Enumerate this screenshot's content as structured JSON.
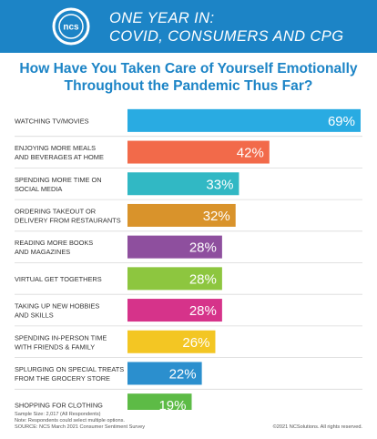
{
  "header": {
    "logo_text": "ncs",
    "line1": "ONE YEAR IN:",
    "line2": "COVID, CONSUMERS AND CPG",
    "background_color": "#1c84c6"
  },
  "chart_data": {
    "type": "bar",
    "orientation": "horizontal",
    "title_lines": [
      "How Have You Taken Care of Yourself Emotionally",
      "Throughout the Pandemic Thus Far?"
    ],
    "categories": [
      [
        "WATCHING TV/MOVIES"
      ],
      [
        "ENJOYING MORE MEALS",
        "AND BEVERAGES AT HOME"
      ],
      [
        "SPENDING MORE TIME ON",
        "SOCIAL MEDIA"
      ],
      [
        "ORDERING TAKEOUT OR",
        "DELIVERY FROM RESTAURANTS"
      ],
      [
        "READING MORE BOOKS",
        "AND MAGAZINES"
      ],
      [
        "VIRTUAL GET TOGETHERS"
      ],
      [
        "TAKING UP NEW HOBBIES",
        "AND SKILLS"
      ],
      [
        "SPENDING IN-PERSON TIME",
        "WITH FRIENDS & FAMILY"
      ],
      [
        "SPLURGING ON SPECIAL TREATS",
        "FROM THE GROCERY STORE"
      ],
      [
        "SHOPPING FOR CLOTHING"
      ]
    ],
    "values": [
      69,
      42,
      33,
      32,
      28,
      28,
      28,
      26,
      22,
      19
    ],
    "value_labels": [
      "69%",
      "42%",
      "33%",
      "32%",
      "28%",
      "28%",
      "28%",
      "26%",
      "22%",
      "19%"
    ],
    "colors": [
      "#29abe2",
      "#f26a4a",
      "#31b8c4",
      "#d9932b",
      "#8e4f9e",
      "#8dc63f",
      "#d6338a",
      "#f3c623",
      "#2b8fce",
      "#5dbb46"
    ],
    "xlim": [
      0,
      69
    ],
    "grid": false,
    "legend": "none"
  },
  "footnotes": [
    "Sample Size: 2,017 (All Respondents)",
    "Note: Respondents could select multiple options.",
    "SOURCE: NCS March 2021 Consumer Sentiment Survey"
  ],
  "copyright": "©2021 NCSolutions. All rights reserved."
}
